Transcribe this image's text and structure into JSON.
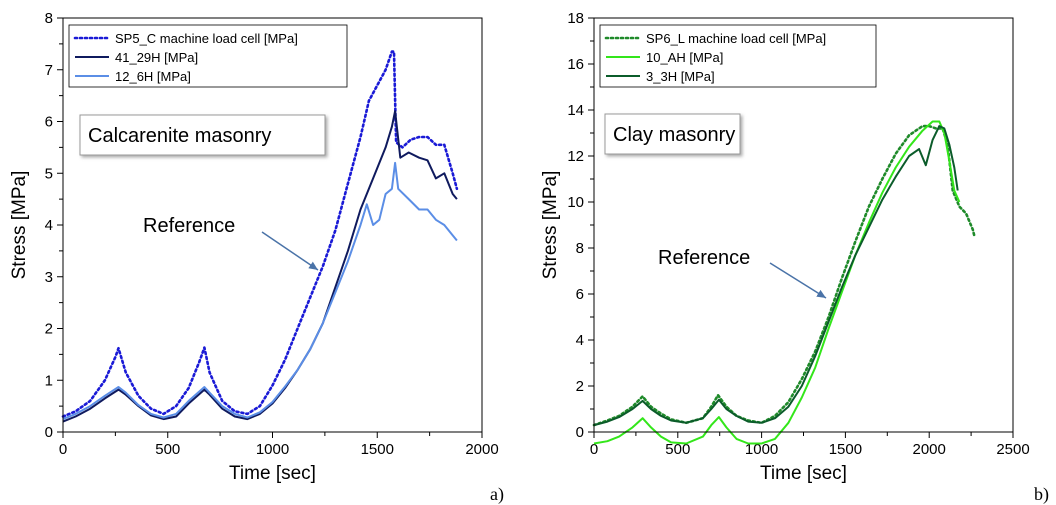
{
  "chart_data": [
    {
      "type": "line",
      "panel_label": "a)",
      "xlabel": "Time [sec]",
      "ylabel": "Stress [MPa]",
      "xlim": [
        0,
        2000
      ],
      "ylim": [
        0,
        8
      ],
      "xticks": [
        0,
        500,
        1000,
        1500,
        2000
      ],
      "yticks": [
        0,
        1,
        2,
        3,
        4,
        5,
        6,
        7,
        8
      ],
      "grid": false,
      "legend_position": "top-left",
      "annotation_box": "Calcarenite masonry",
      "reference_label": "Reference",
      "reference_arrow_from": [
        1220,
        4.0
      ],
      "reference_arrow_to": [
        1300,
        3.1
      ],
      "series": [
        {
          "name": "SP5_C machine load cell [MPa]",
          "color": "#1a1ad6",
          "style": "dotted",
          "x": [
            0,
            60,
            130,
            200,
            250,
            265,
            300,
            360,
            420,
            480,
            540,
            600,
            650,
            675,
            700,
            760,
            820,
            880,
            940,
            1000,
            1060,
            1120,
            1180,
            1240,
            1300,
            1360,
            1420,
            1460,
            1500,
            1540,
            1570,
            1580,
            1590,
            1620,
            1660,
            1700,
            1740,
            1780,
            1820,
            1860,
            1880
          ],
          "y": [
            0.3,
            0.4,
            0.6,
            1.0,
            1.45,
            1.62,
            1.15,
            0.7,
            0.45,
            0.35,
            0.5,
            0.85,
            1.35,
            1.63,
            1.15,
            0.6,
            0.4,
            0.35,
            0.5,
            0.9,
            1.4,
            2.0,
            2.6,
            3.2,
            3.9,
            4.8,
            5.7,
            6.4,
            6.7,
            7.0,
            7.35,
            7.35,
            5.6,
            5.5,
            5.65,
            5.7,
            5.7,
            5.55,
            5.55,
            5.0,
            4.7
          ]
        },
        {
          "name": "41_29H [MPa]",
          "color": "#0f1a5e",
          "style": "solid",
          "x": [
            0,
            60,
            130,
            200,
            265,
            300,
            360,
            420,
            480,
            540,
            600,
            675,
            700,
            760,
            820,
            880,
            940,
            1000,
            1060,
            1120,
            1180,
            1240,
            1300,
            1360,
            1420,
            1480,
            1540,
            1570,
            1585,
            1610,
            1650,
            1700,
            1740,
            1780,
            1820,
            1860,
            1880
          ],
          "y": [
            0.2,
            0.3,
            0.45,
            0.65,
            0.82,
            0.72,
            0.5,
            0.32,
            0.25,
            0.3,
            0.55,
            0.82,
            0.72,
            0.45,
            0.3,
            0.25,
            0.35,
            0.55,
            0.85,
            1.2,
            1.6,
            2.1,
            2.8,
            3.5,
            4.3,
            4.9,
            5.5,
            5.9,
            6.2,
            5.3,
            5.4,
            5.3,
            5.25,
            4.9,
            5.0,
            4.6,
            4.5
          ]
        },
        {
          "name": "12_6H [MPa]",
          "color": "#5b8ee6",
          "style": "solid",
          "x": [
            0,
            60,
            130,
            200,
            265,
            300,
            360,
            420,
            480,
            540,
            600,
            675,
            700,
            760,
            820,
            880,
            940,
            1000,
            1060,
            1120,
            1180,
            1240,
            1300,
            1360,
            1420,
            1450,
            1480,
            1510,
            1540,
            1570,
            1585,
            1600,
            1650,
            1700,
            1740,
            1780,
            1820,
            1860,
            1880
          ],
          "y": [
            0.25,
            0.35,
            0.5,
            0.7,
            0.87,
            0.76,
            0.52,
            0.35,
            0.28,
            0.35,
            0.6,
            0.87,
            0.76,
            0.5,
            0.35,
            0.28,
            0.38,
            0.58,
            0.88,
            1.2,
            1.6,
            2.1,
            2.7,
            3.3,
            4.0,
            4.4,
            4.0,
            4.1,
            4.6,
            4.7,
            5.2,
            4.7,
            4.5,
            4.3,
            4.3,
            4.1,
            4.0,
            3.8,
            3.7
          ]
        }
      ]
    },
    {
      "type": "line",
      "panel_label": "b)",
      "xlabel": "Time [sec]",
      "ylabel": "Stress [MPa]",
      "xlim": [
        0,
        2500
      ],
      "ylim": [
        0,
        18
      ],
      "xticks": [
        0,
        500,
        1000,
        1500,
        2000,
        2500
      ],
      "yticks": [
        0,
        2,
        4,
        6,
        8,
        10,
        12,
        14,
        16,
        18
      ],
      "grid": false,
      "legend_position": "top-left",
      "annotation_box": "Clay masonry",
      "reference_label": "Reference",
      "reference_arrow_from": [
        1080,
        7.8
      ],
      "reference_arrow_to": [
        1400,
        6.1
      ],
      "series": [
        {
          "name": "SP6_L machine load cell [MPa]",
          "color": "#1f8a2a",
          "style": "dotted",
          "x": [
            0,
            80,
            150,
            230,
            290,
            340,
            400,
            460,
            550,
            650,
            700,
            740,
            790,
            850,
            920,
            1000,
            1080,
            1160,
            1240,
            1320,
            1400,
            1480,
            1560,
            1640,
            1720,
            1800,
            1880,
            1960,
            2000,
            2040,
            2080,
            2110,
            2140,
            2180,
            2220,
            2260,
            2270
          ],
          "y": [
            0.3,
            0.5,
            0.7,
            1.1,
            1.55,
            1.1,
            0.8,
            0.55,
            0.4,
            0.6,
            1.1,
            1.6,
            1.1,
            0.7,
            0.5,
            0.4,
            0.7,
            1.3,
            2.3,
            3.5,
            5.0,
            6.7,
            8.3,
            9.8,
            11.0,
            12.1,
            12.9,
            13.3,
            13.3,
            13.2,
            13.2,
            12.5,
            10.5,
            9.8,
            9.5,
            8.8,
            8.5
          ]
        },
        {
          "name": "10_AH [MPa]",
          "color": "#33e61a",
          "style": "solid",
          "x": [
            0,
            80,
            150,
            230,
            290,
            340,
            400,
            460,
            550,
            650,
            700,
            745,
            790,
            850,
            920,
            1000,
            1080,
            1160,
            1240,
            1320,
            1400,
            1480,
            1560,
            1640,
            1720,
            1800,
            1880,
            1960,
            2020,
            2060,
            2090,
            2120,
            2150,
            2180
          ],
          "y": [
            -0.5,
            -0.4,
            -0.2,
            0.2,
            0.6,
            0.2,
            -0.2,
            -0.45,
            -0.5,
            -0.2,
            0.3,
            0.65,
            0.2,
            -0.3,
            -0.5,
            -0.5,
            -0.3,
            0.4,
            1.5,
            2.8,
            4.5,
            6.1,
            7.7,
            9.1,
            10.4,
            11.5,
            12.4,
            13.1,
            13.5,
            13.5,
            13.0,
            11.8,
            10.5,
            10.0
          ]
        },
        {
          "name": "3_3H [MPa]",
          "color": "#0b5c2a",
          "style": "solid",
          "x": [
            0,
            80,
            150,
            230,
            290,
            340,
            400,
            460,
            550,
            650,
            700,
            745,
            790,
            850,
            920,
            1000,
            1080,
            1160,
            1240,
            1320,
            1400,
            1480,
            1560,
            1640,
            1720,
            1800,
            1880,
            1940,
            1980,
            2020,
            2060,
            2090,
            2120,
            2150,
            2170
          ],
          "y": [
            0.3,
            0.45,
            0.65,
            1.0,
            1.35,
            1.0,
            0.7,
            0.5,
            0.4,
            0.6,
            1.0,
            1.4,
            1.0,
            0.7,
            0.45,
            0.4,
            0.6,
            1.1,
            2.0,
            3.3,
            4.8,
            6.3,
            7.7,
            8.9,
            10.1,
            11.1,
            12.0,
            12.3,
            11.6,
            12.7,
            13.3,
            13.2,
            12.5,
            11.5,
            10.5
          ]
        }
      ]
    }
  ]
}
